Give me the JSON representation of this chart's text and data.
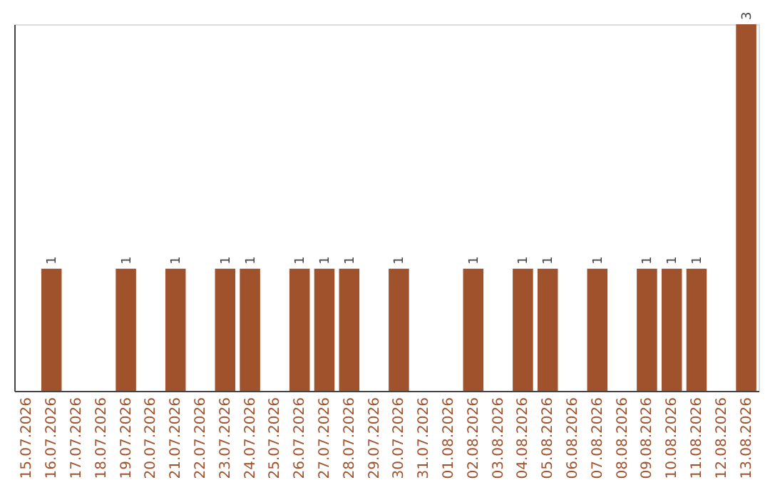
{
  "chart_data": {
    "type": "bar",
    "categories": [
      "15.07.2026",
      "16.07.2026",
      "17.07.2026",
      "18.07.2026",
      "19.07.2026",
      "20.07.2026",
      "21.07.2026",
      "22.07.2026",
      "23.07.2026",
      "24.07.2026",
      "25.07.2026",
      "26.07.2026",
      "27.07.2026",
      "28.07.2026",
      "29.07.2026",
      "30.07.2026",
      "31.07.2026",
      "01.08.2026",
      "02.08.2026",
      "03.08.2026",
      "04.08.2026",
      "05.08.2026",
      "06.08.2026",
      "07.08.2026",
      "08.08.2026",
      "09.08.2026",
      "10.08.2026",
      "11.08.2026",
      "12.08.2026",
      "13.08.2026"
    ],
    "values": [
      0,
      1,
      0,
      0,
      1,
      0,
      1,
      0,
      1,
      1,
      0,
      1,
      1,
      1,
      0,
      1,
      0,
      0,
      1,
      0,
      1,
      1,
      0,
      1,
      0,
      1,
      1,
      1,
      0,
      3
    ],
    "value_labels": [
      null,
      "1",
      null,
      null,
      "1",
      null,
      "1",
      null,
      "1",
      "1",
      null,
      "1",
      "1",
      "1",
      null,
      "1",
      null,
      null,
      "1",
      null,
      "1",
      "1",
      null,
      "1",
      null,
      "1",
      "1",
      "1",
      null,
      "3"
    ],
    "color": "#a0522d",
    "grid": false,
    "tick_labels": "x"
  }
}
